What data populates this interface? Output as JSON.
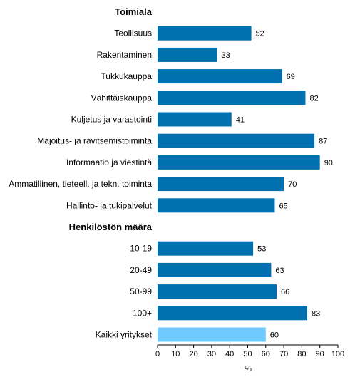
{
  "chart_data": {
    "type": "bar",
    "orientation": "horizontal",
    "xlabel": "%",
    "xlim": [
      0,
      100
    ],
    "xticks": [
      0,
      10,
      20,
      30,
      40,
      50,
      60,
      70,
      80,
      90,
      100
    ],
    "grid": false,
    "legend": "none",
    "colors": {
      "bar": "#0070B0",
      "highlight": "#6FCBFF",
      "axis": "#000000"
    },
    "rows": [
      {
        "kind": "heading",
        "label": "Toimiala"
      },
      {
        "kind": "bar",
        "label": "Teollisuus",
        "value": 52
      },
      {
        "kind": "bar",
        "label": "Rakentaminen",
        "value": 33
      },
      {
        "kind": "bar",
        "label": "Tukkukauppa",
        "value": 69
      },
      {
        "kind": "bar",
        "label": "Vähittäiskauppa",
        "value": 82
      },
      {
        "kind": "bar",
        "label": "Kuljetus ja varastointi",
        "value": 41
      },
      {
        "kind": "bar",
        "label": "Majoitus- ja ravitsemistoiminta",
        "value": 87
      },
      {
        "kind": "bar",
        "label": "Informaatio ja viestintä",
        "value": 90
      },
      {
        "kind": "bar",
        "label": "Ammatillinen, tieteell. ja tekn. toiminta",
        "value": 70
      },
      {
        "kind": "bar",
        "label": "Hallinto- ja tukipalvelut",
        "value": 65
      },
      {
        "kind": "heading",
        "label": "Henkilöstön määrä"
      },
      {
        "kind": "bar",
        "label": "10-19",
        "value": 53
      },
      {
        "kind": "bar",
        "label": "20-49",
        "value": 63
      },
      {
        "kind": "bar",
        "label": "50-99",
        "value": 66
      },
      {
        "kind": "bar",
        "label": "100+",
        "value": 83
      },
      {
        "kind": "bar",
        "label": "Kaikki yritykset",
        "value": 60,
        "highlight": true
      }
    ]
  }
}
